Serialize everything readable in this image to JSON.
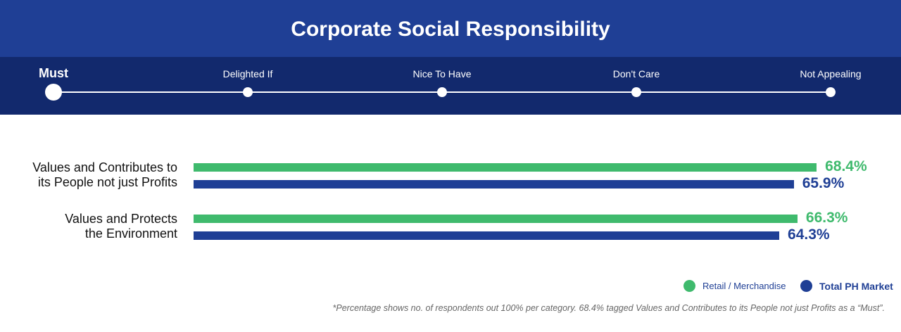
{
  "header": {
    "title": "Corporate Social Responsibility"
  },
  "scale": {
    "stops": [
      "Must",
      "Delighted If",
      "Nice To Have",
      "Don't Care",
      "Not Appealing"
    ],
    "active": "Must"
  },
  "chart_data": {
    "type": "bar",
    "orientation": "horizontal",
    "title": "Corporate Social Responsibility",
    "categories": [
      "Values and Contributes to its People not just Profits",
      "Values and Protects the Environment"
    ],
    "category_lines": [
      [
        "Values and Contributes to",
        "its People not just Profits"
      ],
      [
        "Values and Protects",
        "the Environment"
      ]
    ],
    "series": [
      {
        "name": "Retail / Merchandise",
        "color": "#3fba6d",
        "values": [
          68.4,
          66.3
        ],
        "labels": [
          "68.4%",
          "66.3%"
        ]
      },
      {
        "name": "Total PH Market",
        "color": "#1f3f95",
        "values": [
          65.9,
          64.3
        ],
        "labels": [
          "65.9%",
          "64.3%"
        ]
      }
    ],
    "xlim": [
      0,
      100
    ],
    "unit": "%",
    "legend": "bottom-right"
  },
  "footnote": "*Percentage shows no. of respondents out 100% per category. 68.4% tagged Values and Contributes to its People not just Profits as a “Must”."
}
